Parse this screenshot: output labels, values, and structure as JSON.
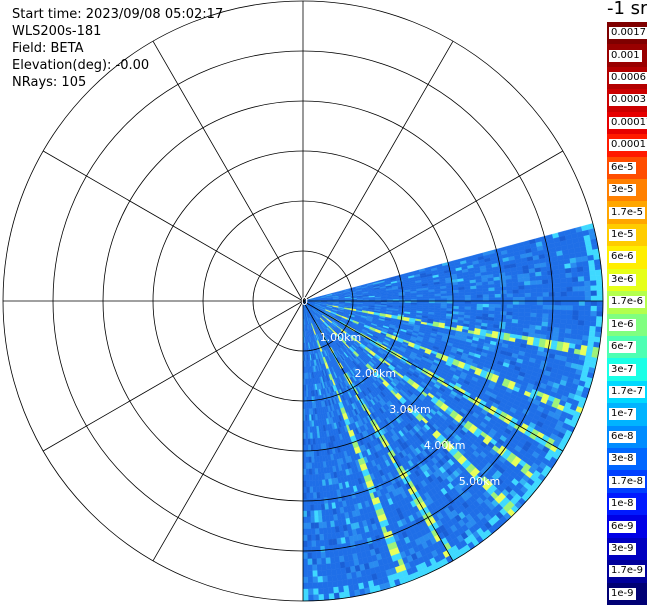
{
  "header": {
    "start_time": "Start time: 2023/09/08 05:02:17",
    "instrument": "WLS200s-181",
    "field": "Field: BETA",
    "elevation": "Elevation(deg): -0.00",
    "nrays": "NRays: 105"
  },
  "colorbar": {
    "unit": "-1 sr",
    "labels": [
      "0.0017",
      "0.001",
      "0.0006",
      "0.0003",
      "0.00017",
      "0.0001",
      "6e-5",
      "3e-5",
      "1.7e-5",
      "1e-5",
      "6e-6",
      "3e-6",
      "1.7e-6",
      "1e-6",
      "6e-7",
      "3e-7",
      "1.7e-7",
      "1e-7",
      "6e-8",
      "3e-8",
      "1.7e-8",
      "1e-8",
      "6e-9",
      "3e-9",
      "1.7e-9",
      "1e-9"
    ],
    "colors": [
      "#7f0000",
      "#990000",
      "#b30000",
      "#cc0000",
      "#e60000",
      "#ff1a00",
      "#ff4d00",
      "#ff8000",
      "#ffa600",
      "#ffcc00",
      "#ffee00",
      "#e6ff1a",
      "#b3ff4d",
      "#80ff80",
      "#4dffb3",
      "#1affe6",
      "#00d9ff",
      "#00b3ff",
      "#008cff",
      "#0066ff",
      "#0040ff",
      "#001aff",
      "#0000e6",
      "#0000c0",
      "#00009a",
      "#000074"
    ]
  },
  "chart_data": {
    "type": "heatmap",
    "projection": "polar PPI",
    "range_rings_km": [
      1,
      2,
      3,
      4,
      5
    ],
    "range_labels": [
      "0",
      "1.00km",
      "2.00km",
      "3.00km",
      "4.00km",
      "5.00km"
    ],
    "max_range_km": 6,
    "spoke_step_deg": 30,
    "scan_sector_deg": [
      75,
      180
    ],
    "nrays": 105,
    "field": "BETA",
    "background_color": "#1f6fe8",
    "feature_rays_deg": [
      100,
      112,
      120,
      127,
      135,
      150,
      160
    ],
    "feature_colors": [
      "#3fd9ff",
      "#9ef27a",
      "#e8ff5a"
    ]
  }
}
